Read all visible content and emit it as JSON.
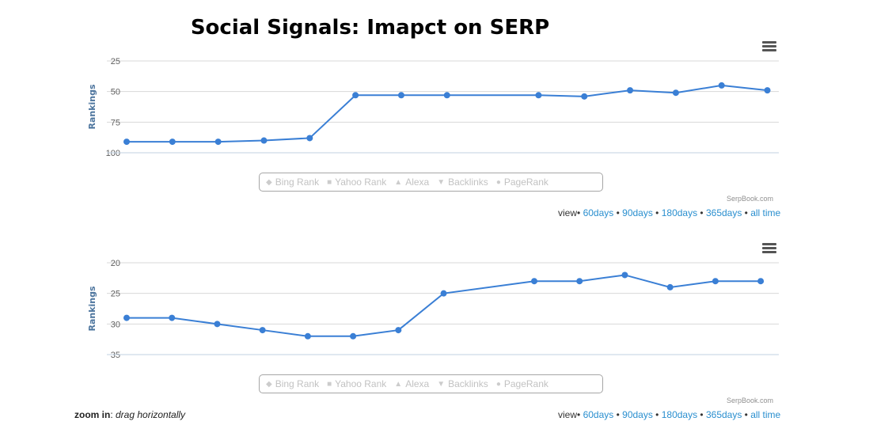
{
  "page": {
    "title": "Social Signals: Imapct on SERP",
    "zoom_label": "zoom in",
    "zoom_hint": "drag horizontally"
  },
  "colors": {
    "series": "#3a7fd5",
    "grid": "#d8d8d8",
    "link": "#2a8fcf",
    "axis_title": "#4d759e"
  },
  "legend": {
    "items": [
      {
        "label": "Bing Rank",
        "icon": "diamond-icon"
      },
      {
        "label": "Yahoo Rank",
        "icon": "square-icon"
      },
      {
        "label": "Alexa",
        "icon": "triangle-icon"
      },
      {
        "label": "Backlinks",
        "icon": "triangle-down-icon"
      },
      {
        "label": "PageRank",
        "icon": "circle-icon"
      }
    ]
  },
  "credits": "SerpBook.com",
  "view_options": {
    "prefix": "view",
    "options": [
      "60days",
      "90days",
      "180days",
      "365days",
      "all time"
    ]
  },
  "chart_data": [
    {
      "type": "line",
      "ylabel": "Rankings",
      "y_reversed": true,
      "ylim": [
        25,
        100
      ],
      "yticks": [
        25,
        50,
        75,
        100
      ],
      "grid": true,
      "legend_position": "bottom-center",
      "x": [
        1,
        2,
        3,
        4,
        5,
        6,
        7,
        8,
        10,
        11,
        12,
        13,
        14,
        15
      ],
      "series": [
        {
          "values": [
            91,
            91,
            91,
            90,
            88,
            53,
            53,
            53,
            53,
            54,
            49,
            51,
            45,
            49
          ]
        }
      ]
    },
    {
      "type": "line",
      "ylabel": "Rankings",
      "y_reversed": true,
      "ylim": [
        20,
        35
      ],
      "yticks": [
        20,
        25,
        30,
        35
      ],
      "grid": true,
      "legend_position": "bottom-center",
      "x": [
        1,
        2,
        3,
        4,
        5,
        6,
        7,
        8,
        10,
        11,
        12,
        13,
        14,
        15
      ],
      "series": [
        {
          "values": [
            29,
            29,
            30,
            31,
            32,
            32,
            31,
            25,
            23,
            23,
            22,
            24,
            23,
            23
          ]
        }
      ]
    }
  ]
}
